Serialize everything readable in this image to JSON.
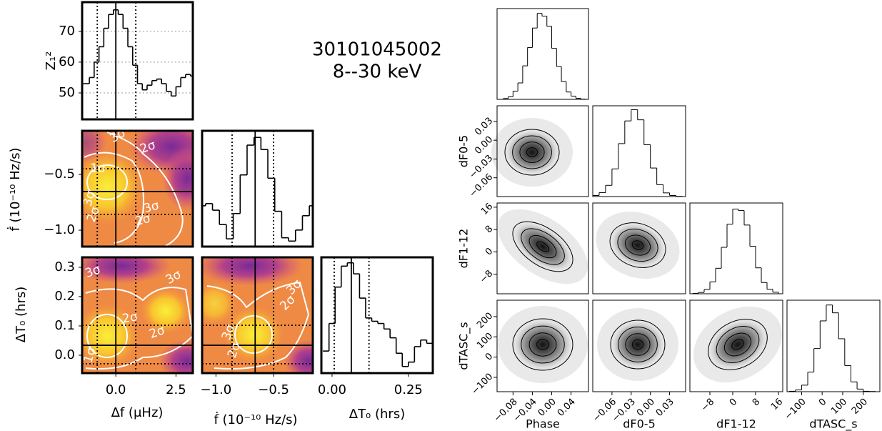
{
  "chart_data": [
    {
      "type": "line",
      "title": "30101045002",
      "subtitle": "8--30 keV",
      "ylabel": "Z₁²",
      "x": [
        -1.4,
        -1.2,
        -1.0,
        -0.8,
        -0.6,
        -0.4,
        -0.2,
        0.0,
        0.2,
        0.4,
        0.6,
        0.8,
        1.0,
        1.2,
        1.4,
        1.6,
        1.8,
        2.0,
        2.2,
        2.4,
        2.6,
        2.8,
        3.0,
        3.2
      ],
      "values": [
        53,
        53,
        55,
        60,
        65,
        71,
        75.5,
        77,
        75.5,
        71,
        65,
        59,
        53,
        51,
        52.5,
        54,
        54.5,
        53,
        50.5,
        49,
        52,
        55,
        56,
        55.5
      ],
      "xlim": [
        -1.4,
        3.2
      ],
      "ylim": [
        41.4,
        79.5
      ],
      "yticks": [
        50,
        60,
        70
      ],
      "grid": true,
      "vlines": [
        -0.77,
        0.0,
        0.83
      ]
    },
    {
      "type": "heatmap",
      "ylabel": "ḟ (10⁻¹⁰ Hz/s)",
      "xlim": [
        -1.4,
        3.2
      ],
      "ylim": [
        -1.147,
        -0.109
      ],
      "yticks": [
        {
          "value": -0.5,
          "label": "−0.5"
        },
        {
          "value": -1.0,
          "label": "−1.0"
        }
      ],
      "vlines": [
        -0.77,
        0.0,
        0.83
      ],
      "hlines": [
        -0.859,
        -0.654,
        -0.449
      ],
      "annotations": [
        "3σ",
        "2σ",
        "1σ",
        "3σ",
        "2σ",
        "3σ",
        "2σ"
      ]
    },
    {
      "type": "line",
      "x": [
        -1.12,
        -1.06,
        -1.0,
        -0.94,
        -0.88,
        -0.82,
        -0.76,
        -0.7,
        -0.64,
        -0.58,
        -0.52,
        -0.46,
        -0.4,
        -0.34,
        -0.28,
        -0.22,
        -0.16
      ],
      "values": [
        0.37,
        0.39,
        0.33,
        0.2,
        0.07,
        0.3,
        0.65,
        0.92,
        0.99,
        0.88,
        0.62,
        0.32,
        0.08,
        0.05,
        0.15,
        0.28,
        0.37
      ],
      "xlim": [
        -1.12,
        -0.16
      ],
      "ylim": [
        0,
        1.05
      ],
      "vlines": [
        -0.86,
        -0.66,
        -0.5
      ]
    },
    {
      "type": "heatmap",
      "xlabel": "Δf (μHz)",
      "ylabel": "ΔT₀ (hrs)",
      "xlim": [
        -1.4,
        3.2
      ],
      "ylim": [
        -0.061,
        0.334
      ],
      "xticks": [
        {
          "value": 0,
          "label": "0.0"
        },
        2.5
      ],
      "yticks": [
        {
          "value": 0,
          "label": "0.0"
        },
        0.1,
        0.2,
        0.3
      ],
      "vlines": [
        -0.77,
        0.0,
        0.83
      ],
      "hlines": [
        -0.029,
        0.034,
        0.102
      ],
      "annotations": [
        "3σ",
        "3σ",
        "2σ",
        "2σ",
        "1σ"
      ]
    },
    {
      "type": "heatmap",
      "xlabel": "ḟ (10⁻¹⁰ Hz/s)",
      "xlim": [
        -1.12,
        -0.16
      ],
      "ylim": [
        -0.061,
        0.334
      ],
      "xticks": [
        {
          "value": -1.0,
          "label": "−1.0"
        },
        {
          "value": -0.5,
          "label": "−0.5"
        }
      ],
      "vlines": [
        -0.86,
        -0.66,
        -0.5
      ],
      "hlines": [
        -0.029,
        0.034,
        0.102
      ],
      "annotations": [
        "3σ",
        "2σ",
        "3σ",
        "2σ"
      ]
    },
    {
      "type": "line",
      "xlabel": "ΔT₀ (hrs)",
      "x": [
        -0.02,
        0.0,
        0.02,
        0.04,
        0.06,
        0.08,
        0.1,
        0.12,
        0.14,
        0.16,
        0.18,
        0.2,
        0.22,
        0.24,
        0.26,
        0.28,
        0.3,
        0.32
      ],
      "values": [
        0.2,
        0.45,
        0.78,
        0.97,
        1.0,
        0.9,
        0.68,
        0.5,
        0.47,
        0.45,
        0.4,
        0.32,
        0.18,
        0.06,
        0.1,
        0.24,
        0.3,
        0.27
      ],
      "xlim": [
        -0.035,
        0.33
      ],
      "ylim": [
        0,
        1.05
      ],
      "xticks": [
        {
          "value": 0,
          "label": "0.00"
        },
        0.25
      ],
      "vlines": [
        0.007,
        0.063,
        0.121
      ]
    },
    {
      "type": "corner",
      "variables": [
        {
          "label": "Phase",
          "lim": [
            -0.113,
            0.076
          ],
          "ticks": [
            {
              "value": -0.08,
              "label": "−0.08"
            },
            {
              "value": -0.04,
              "label": "−0.04"
            },
            {
              "value": 0,
              "label": "0.00"
            },
            0.04
          ],
          "bins": [
            -0.1,
            -0.09,
            -0.08,
            -0.07,
            -0.06,
            -0.05,
            -0.04,
            -0.03,
            -0.02,
            -0.01,
            0.0,
            0.01,
            0.02,
            0.03,
            0.04,
            0.05,
            0.06,
            0.07
          ],
          "counts": [
            4,
            12,
            38,
            76,
            155,
            240,
            330,
            398,
            385,
            338,
            236,
            152,
            82,
            34,
            15,
            5,
            1
          ],
          "hist_ylim": [
            0,
            420
          ]
        },
        {
          "label": "dF0-5",
          "lim": [
            -0.09,
            0.055
          ],
          "ticks": [
            {
              "value": -0.06,
              "label": "−0.06"
            },
            {
              "value": -0.03,
              "label": "−0.03"
            },
            {
              "value": 0,
              "label": "0.00"
            },
            0.03
          ],
          "bins": [
            -0.09,
            -0.08,
            -0.07,
            -0.06,
            -0.05,
            -0.04,
            -0.03,
            -0.02,
            -0.01,
            0.0,
            0.01,
            0.02,
            0.03,
            0.04,
            0.05
          ],
          "counts": [
            5,
            18,
            52,
            128,
            245,
            350,
            402,
            355,
            240,
            132,
            55,
            17,
            5,
            1
          ],
          "hist_ylim": [
            0,
            420
          ]
        },
        {
          "label": "dF1-12",
          "lim": [
            -15,
            17.5
          ],
          "ticks": [
            {
              "value": -8,
              "label": "−8"
            },
            0,
            8,
            16
          ],
          "bins": [
            -14,
            -12,
            -10,
            -8,
            -6,
            -4,
            -2,
            0,
            2,
            4,
            6,
            8,
            10,
            12,
            14,
            16
          ],
          "counts": [
            2,
            6,
            20,
            55,
            118,
            215,
            322,
            392,
            385,
            318,
            220,
            120,
            52,
            21,
            7
          ],
          "hist_ylim": [
            0,
            420
          ]
        },
        {
          "label": "dTASC_s",
          "lim": [
            -171,
            281
          ],
          "ticks": [
            {
              "value": -100,
              "label": "−100"
            },
            0,
            100,
            200
          ],
          "bins": [
            -160,
            -130,
            -100,
            -70,
            -40,
            -10,
            20,
            50,
            80,
            110,
            140,
            170,
            200,
            230,
            260
          ],
          "counts": [
            2,
            8,
            30,
            90,
            198,
            325,
            398,
            362,
            243,
            120,
            45,
            12,
            2,
            1
          ],
          "hist_ylim": [
            0,
            420
          ]
        }
      ]
    }
  ]
}
